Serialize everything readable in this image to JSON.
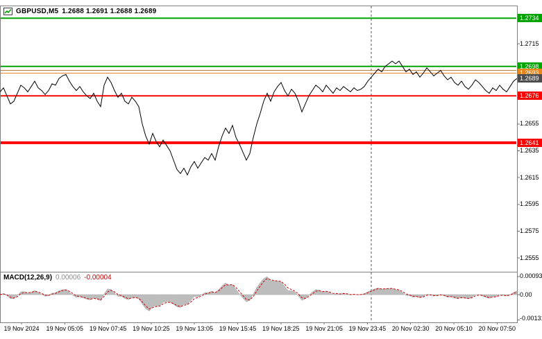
{
  "header": {
    "symbol": "GBPUSD,M5",
    "ohlc": "1.2688 1.2691 1.2688 1.2689"
  },
  "chart_data": {
    "type": "line",
    "title": "GBPUSD M5",
    "legend_position": "none",
    "grid": false,
    "y_axis": {
      "ticks": [
        "1.2715",
        "1.2695",
        "1.2675",
        "1.2655",
        "1.2635",
        "1.2615",
        "1.2595",
        "1.2575",
        "1.2555"
      ],
      "top_price": 1.27435,
      "bottom_price": 1.25455
    },
    "x_axis": {
      "labels": [
        "19 Nov 2024",
        "19 Nov 05:05",
        "19 Nov 07:45",
        "19 Nov 10:25",
        "19 Nov 13:05",
        "19 Nov 15:45",
        "19 Nov 18:25",
        "19 Nov 21:05",
        "19 Nov 23:45",
        "20 Nov 02:30",
        "20 Nov 05:10",
        "20 Nov 07:50"
      ]
    },
    "day_separator_after_label": "19 Nov 23:45",
    "series": [
      {
        "name": "GBPUSD M5 close",
        "color": "#000000",
        "prices": [
          1.2679,
          1.2682,
          1.2676,
          1.267,
          1.2672,
          1.2678,
          1.2684,
          1.2682,
          1.2679,
          1.2683,
          1.2687,
          1.2682,
          1.268,
          1.2677,
          1.268,
          1.2685,
          1.2684,
          1.2689,
          1.2691,
          1.2692,
          1.2687,
          1.2683,
          1.268,
          1.2683,
          1.2679,
          1.2676,
          1.2674,
          1.2678,
          1.2672,
          1.2668,
          1.2684,
          1.269,
          1.2686,
          1.268,
          1.2675,
          1.2678,
          1.2672,
          1.267,
          1.2675,
          1.2672,
          1.2668,
          1.2655,
          1.2646,
          1.264,
          1.2648,
          1.2642,
          1.2638,
          1.2643,
          1.2639,
          1.2635,
          1.2628,
          1.2621,
          1.2618,
          1.2622,
          1.2617,
          1.2623,
          1.2627,
          1.2622,
          1.2626,
          1.263,
          1.2628,
          1.2633,
          1.2628,
          1.2638,
          1.2646,
          1.2652,
          1.2648,
          1.2654,
          1.2645,
          1.264,
          1.2634,
          1.2628,
          1.2633,
          1.2645,
          1.2655,
          1.2663,
          1.2672,
          1.2678,
          1.2672,
          1.2679,
          1.2683,
          1.2686,
          1.268,
          1.2676,
          1.2681,
          1.2678,
          1.2672,
          1.2664,
          1.267,
          1.2676,
          1.268,
          1.2684,
          1.2682,
          1.2679,
          1.2684,
          1.2681,
          1.2678,
          1.2682,
          1.268,
          1.2683,
          1.2681,
          1.2679,
          1.2682,
          1.268,
          1.2681,
          1.2683,
          1.2687,
          1.269,
          1.2693,
          1.2696,
          1.2694,
          1.2698,
          1.27,
          1.2702,
          1.27,
          1.2702,
          1.2698,
          1.2694,
          1.2696,
          1.2692,
          1.2694,
          1.269,
          1.2693,
          1.2697,
          1.2694,
          1.2691,
          1.2693,
          1.2695,
          1.2691,
          1.2688,
          1.269,
          1.2686,
          1.2684,
          1.2687,
          1.2683,
          1.2681,
          1.2684,
          1.2688,
          1.2686,
          1.2683,
          1.268,
          1.2678,
          1.2682,
          1.268,
          1.2684,
          1.2681,
          1.2679,
          1.2683,
          1.2687,
          1.2689
        ]
      }
    ],
    "levels": [
      {
        "price": 1.2734,
        "label": "1.2734",
        "line_color": "#00a400",
        "line_width": 2,
        "badge": true,
        "badge_color": "#00a400"
      },
      {
        "price": 1.2698,
        "label": "1.2698",
        "line_color": "#00a400",
        "line_width": 2,
        "badge": true,
        "badge_color": "#00a400"
      },
      {
        "price": 1.2695,
        "label": "",
        "line_color": "#b87333",
        "line_width": 1,
        "badge": false,
        "badge_color": ""
      },
      {
        "price": 1.2693,
        "label": "1.2693",
        "line_color": "#e8861d",
        "line_width": 1,
        "badge": true,
        "badge_color": "#e8861d"
      },
      {
        "price": 1.2689,
        "label": "1.2689",
        "line_color": "",
        "line_width": 0,
        "badge": true,
        "badge_color": "#4d4d4d"
      },
      {
        "price": 1.2676,
        "label": "1.2676",
        "line_color": "#ff0000",
        "line_width": 2,
        "badge": true,
        "badge_color": "#ff0000"
      },
      {
        "price": 1.2641,
        "label": "1.2641",
        "line_color": "#ff0000",
        "line_width": 4,
        "badge": true,
        "badge_color": "#ff0000"
      }
    ],
    "macd": {
      "name": "MACD(12,26,9)",
      "main_value": "0.00006",
      "signal_value": "-0.00004",
      "histogram_color": "#bdbdbd",
      "signal_color": "#d00000",
      "scale_max": 0.00093,
      "scale_min": -0.00131,
      "scale_labels": [
        {
          "v": 0.00093,
          "t": "0.00093"
        },
        {
          "v": 0,
          "t": "0.00"
        },
        {
          "v": -0.00131,
          "t": "-0.00131"
        }
      ]
    }
  }
}
